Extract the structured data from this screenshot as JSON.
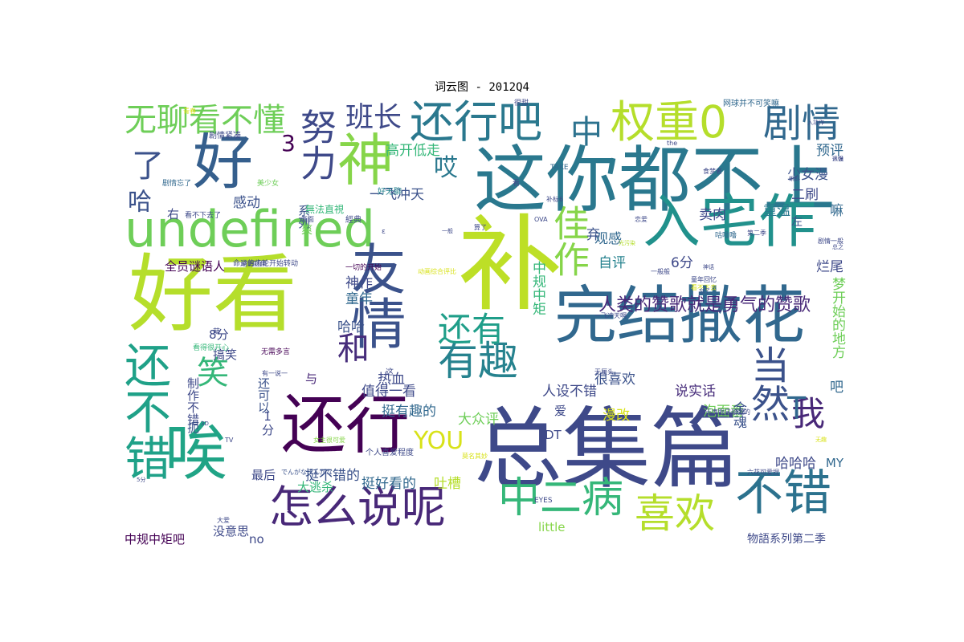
{
  "title": "词云图 - 2012Q4",
  "words": [
    {
      "text": "好看",
      "color": "#b5de2b"
    },
    {
      "text": "补",
      "color": "#bddf26"
    },
    {
      "text": "总集篇",
      "color": "#3e4989"
    },
    {
      "text": "这你都不上",
      "color": "#2a788e"
    },
    {
      "text": "还行",
      "color": "#440154"
    },
    {
      "text": "完结撒花",
      "color": "#31688e"
    },
    {
      "text": "undefined",
      "color": "#6ece58"
    },
    {
      "text": "入宅作",
      "color": "#21918c"
    },
    {
      "text": "唉",
      "color": "#20a486"
    },
    {
      "text": "好",
      "color": "#355f8d"
    },
    {
      "text": "神",
      "color": "#86d549"
    },
    {
      "text": "友情",
      "color": "#3b528b"
    },
    {
      "text": "还不错",
      "color": "#1fa188"
    },
    {
      "text": "不错",
      "color": "#2c728e"
    },
    {
      "text": "怎么说呢",
      "color": "#482878"
    },
    {
      "text": "有趣",
      "color": "#26828e"
    },
    {
      "text": "还行吧",
      "color": "#2a788e"
    },
    {
      "text": "中二病",
      "color": "#35b779"
    },
    {
      "text": "喜欢",
      "color": "#b5de2b"
    },
    {
      "text": "权重0",
      "color": "#b5de2b"
    },
    {
      "text": "剧情",
      "color": "#31688e"
    },
    {
      "text": "努力",
      "color": "#3e4989"
    },
    {
      "text": "佳作",
      "color": "#86d549"
    },
    {
      "text": "当然",
      "color": "#3b528b"
    },
    {
      "text": "我",
      "color": "#482878"
    },
    {
      "text": "和",
      "color": "#472d7b"
    },
    {
      "text": "还有",
      "color": "#1f9e89"
    },
    {
      "text": "无聊看不懂",
      "color": "#6ece58"
    },
    {
      "text": "笑",
      "color": "#35b779"
    },
    {
      "text": "中",
      "color": "#2c728e"
    },
    {
      "text": "了",
      "color": "#3b528b"
    },
    {
      "text": "班长",
      "color": "#3e4989"
    },
    {
      "text": "哎",
      "color": "#2a788e"
    },
    {
      "text": "YOU",
      "color": "#d8e219"
    },
    {
      "text": "T",
      "color": "#31688e"
    },
    {
      "text": "3",
      "color": "#440154"
    },
    {
      "text": "哈",
      "color": "#3b528b"
    },
    {
      "text": "人类的赞歌就是勇气的赞歌",
      "color": "#482878"
    },
    {
      "text": "高开低走",
      "color": "#35b779"
    },
    {
      "text": "少女漫",
      "color": "#3b528b"
    },
    {
      "text": "预评",
      "color": "#31688e"
    },
    {
      "text": "二刷",
      "color": "#3e4989"
    },
    {
      "text": "重温",
      "color": "#2a788e"
    },
    {
      "text": "卖肉",
      "color": "#3e4989"
    },
    {
      "text": "嘛",
      "color": "#31688e"
    },
    {
      "text": "自评",
      "color": "#26828e"
    },
    {
      "text": "6分",
      "color": "#3e4989"
    },
    {
      "text": "观感",
      "color": "#31688e"
    },
    {
      "text": "弃",
      "color": "#3b528b"
    },
    {
      "text": "烂尾",
      "color": "#3e4989"
    },
    {
      "text": "一飞冲天",
      "color": "#3b528b"
    },
    {
      "text": "神作",
      "color": "#3e4989"
    },
    {
      "text": "童年",
      "color": "#31688e"
    },
    {
      "text": "哈哈",
      "color": "#3b528b"
    },
    {
      "text": "中规中矩",
      "color": "#35b779"
    },
    {
      "text": "梦开始的地方",
      "color": "#6ece58"
    },
    {
      "text": "很喜欢",
      "color": "#3b528b"
    },
    {
      "text": "人设不错",
      "color": "#3e4989"
    },
    {
      "text": "说实话",
      "color": "#472d7b"
    },
    {
      "text": "泡面番",
      "color": "#6ece58"
    },
    {
      "text": "吧",
      "color": "#31688e"
    },
    {
      "text": "金魂",
      "color": "#3b528b"
    },
    {
      "text": "值得一看",
      "color": "#3e4989"
    },
    {
      "text": "热血",
      "color": "#3e4989"
    },
    {
      "text": "大众评",
      "color": "#6ece58"
    },
    {
      "text": "挺有趣的",
      "color": "#31688e"
    },
    {
      "text": "漫改",
      "color": "#d8e219"
    },
    {
      "text": "哈哈哈",
      "color": "#3e4989"
    },
    {
      "text": "MY",
      "color": "#31688e"
    },
    {
      "text": "DT",
      "color": "#3e4989"
    },
    {
      "text": "爱",
      "color": "#3e4989"
    },
    {
      "text": "无聊",
      "color": "#35b779"
    },
    {
      "text": "确诊",
      "color": "#31688e"
    },
    {
      "text": "全员谜语人",
      "color": "#440154"
    },
    {
      "text": "感动",
      "color": "#3b528b"
    },
    {
      "text": "右",
      "color": "#3e4989"
    },
    {
      "text": "系列",
      "color": "#3b528b"
    },
    {
      "text": "与",
      "color": "#482878"
    },
    {
      "text": "8分",
      "color": "#3e4989"
    },
    {
      "text": "搞笑",
      "color": "#3e4989"
    },
    {
      "text": "还可以",
      "color": "#3b528b"
    },
    {
      "text": "制作不错",
      "color": "#3e4989"
    },
    {
      "text": "扼",
      "color": "#3b528b"
    },
    {
      "text": "1分",
      "color": "#3e4989"
    },
    {
      "text": "挺不错的",
      "color": "#3b528b"
    },
    {
      "text": "挺好看的",
      "color": "#31688e"
    },
    {
      "text": "吐槽",
      "color": "#b5de2b"
    },
    {
      "text": "大逃杀",
      "color": "#35b779"
    },
    {
      "text": "最后",
      "color": "#3e4989"
    },
    {
      "text": "没意思",
      "color": "#3e4989"
    },
    {
      "text": "中规中矩吧",
      "color": "#440154"
    },
    {
      "text": "no",
      "color": "#3e4989"
    },
    {
      "text": "little",
      "color": "#86d549"
    },
    {
      "text": "物語系列第二季",
      "color": "#3e4989"
    },
    {
      "text": "左",
      "color": "#3b528b"
    },
    {
      "text": "爽",
      "color": "#6ece58"
    },
    {
      "text": "無法直視",
      "color": "#35b779"
    },
    {
      "text": "經典",
      "color": "#3e4989"
    },
    {
      "text": "好无聊",
      "color": "#26828e"
    },
    {
      "text": "剧情紧凑",
      "color": "#3e4989"
    },
    {
      "text": "剧情忘了",
      "color": "#31688e"
    },
    {
      "text": "美少女",
      "color": "#6ece58"
    },
    {
      "text": "看不下去了",
      "color": "#3e4989"
    },
    {
      "text": "命运的齿轮开始转动",
      "color": "#3e4989"
    },
    {
      "text": "總體評價",
      "color": "#3e4989"
    },
    {
      "text": "一切的开始",
      "color": "#440154"
    },
    {
      "text": "动画综合评比",
      "color": "#d8e219"
    },
    {
      "text": "看得很开心",
      "color": "#35b779"
    },
    {
      "text": "无需多言",
      "color": "#440154"
    },
    {
      "text": "个人喜爱程度",
      "color": "#3e4989"
    },
    {
      "text": "でんがなまんがな",
      "color": "#3b528b"
    },
    {
      "text": "网球并不可笑嘛",
      "color": "#31688e"
    },
    {
      "text": "六花可爱捏",
      "color": "#3e4989"
    },
    {
      "text": "邪王真眼是最强的",
      "color": "#3e4989"
    },
    {
      "text": "食梦者",
      "color": "#3e4989"
    },
    {
      "text": "咕噜噜",
      "color": "#31688e"
    },
    {
      "text": "第二季",
      "color": "#3e4989"
    },
    {
      "text": "剧情一般",
      "color": "#3e4989"
    },
    {
      "text": "童年回忆",
      "color": "#3e4989"
    },
    {
      "text": "一般般",
      "color": "#3e4989"
    },
    {
      "text": "恋爱",
      "color": "#3e4989"
    },
    {
      "text": "光污染",
      "color": "#b5de2b"
    },
    {
      "text": "无厘头",
      "color": "#3e4989"
    },
    {
      "text": "EYES",
      "color": "#3e4989"
    },
    {
      "text": "TAKE",
      "color": "#31688e"
    },
    {
      "text": "OVA",
      "color": "#3e4989"
    },
    {
      "text": "补标6",
      "color": "#3e4989"
    },
    {
      "text": "画面",
      "color": "#3e4989"
    },
    {
      "text": "算了",
      "color": "#3e4989"
    },
    {
      "text": "看",
      "color": "#3e4989"
    },
    {
      "text": "萌",
      "color": "#3e4989"
    },
    {
      "text": "大爱",
      "color": "#3e4989"
    },
    {
      "text": "青春",
      "color": "#d8e219"
    },
    {
      "text": "很甜",
      "color": "#3e4989"
    },
    {
      "text": "ε",
      "color": "#3e4989"
    },
    {
      "text": "这",
      "color": "#3e4989"
    },
    {
      "text": "有一说一",
      "color": "#3e4989"
    },
    {
      "text": "the",
      "color": "#3e4989"
    },
    {
      "text": "女主很可爱",
      "color": "#86d549"
    },
    {
      "text": "莫名其妙",
      "color": "#d8e219"
    },
    {
      "text": "看不下去",
      "color": "#d8e219"
    },
    {
      "text": "一飞冲天啊",
      "color": "#3e4989"
    },
    {
      "text": "人设",
      "color": "#3e4989"
    },
    {
      "text": "总之",
      "color": "#3e4989"
    },
    {
      "text": "3D",
      "color": "#3e4989"
    },
    {
      "text": "TV",
      "color": "#3e4989"
    },
    {
      "text": "5分",
      "color": "#3e4989"
    },
    {
      "text": "无趣",
      "color": "#d8e219"
    },
    {
      "text": "蝌蚪",
      "color": "#3e4989"
    },
    {
      "text": "很强",
      "color": "#3e4989"
    },
    {
      "text": "入坑作",
      "color": "#3e4989"
    },
    {
      "text": "神话",
      "color": "#3e4989"
    },
    {
      "text": "忘了",
      "color": "#3e4989"
    },
    {
      "text": "一般",
      "color": "#3e4989"
    }
  ]
}
